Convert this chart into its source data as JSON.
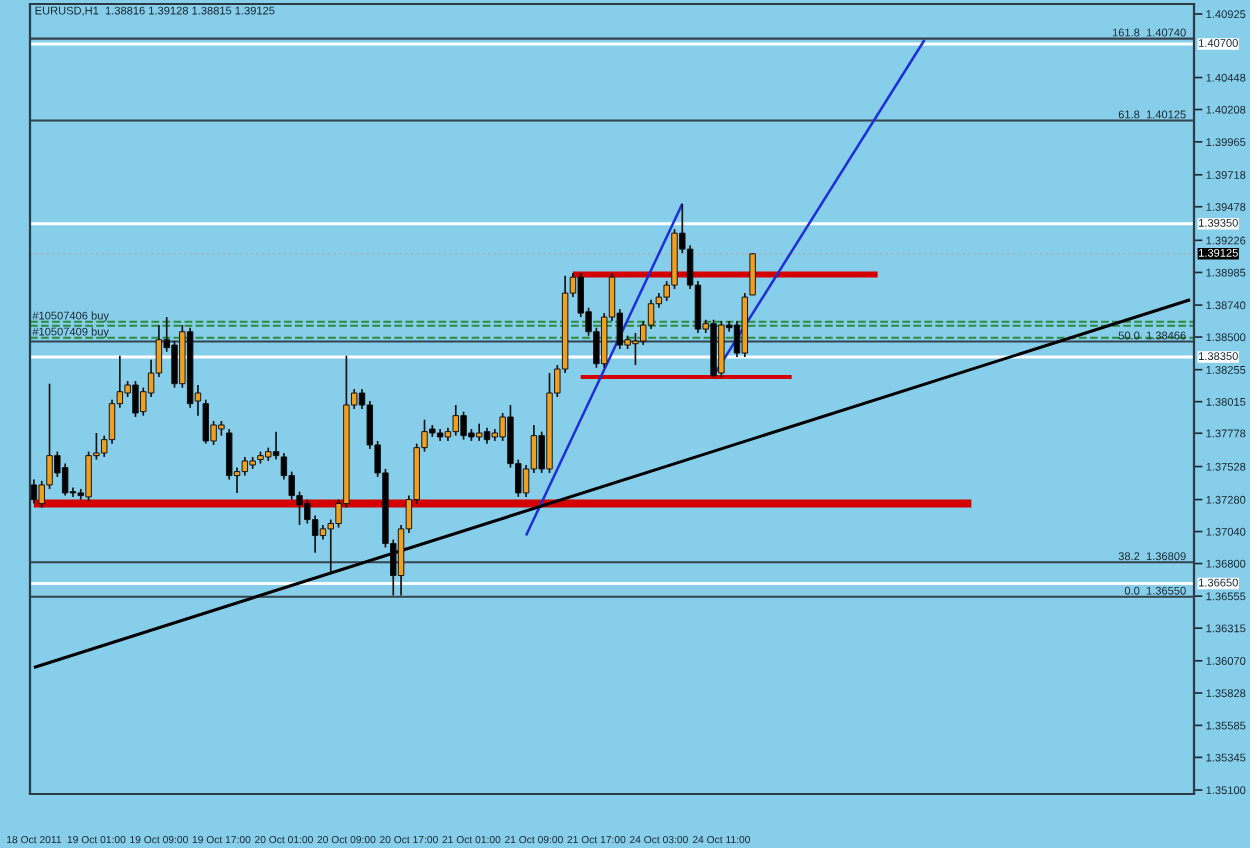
{
  "chart_data": {
    "type": "candlestick",
    "title": "EURUSD,H1  1.38816 1.39128 1.38815 1.39125",
    "categories": [
      "18 Oct 2011",
      null,
      null,
      null,
      null,
      null,
      null,
      null,
      "19 Oct 01:00",
      null,
      null,
      null,
      null,
      null,
      null,
      null,
      "19 Oct 09:00",
      null,
      null,
      null,
      null,
      null,
      null,
      null,
      "19 Oct 17:00",
      null,
      null,
      null,
      null,
      null,
      null,
      null,
      "20 Oct 01:00",
      null,
      null,
      null,
      null,
      null,
      null,
      null,
      "20 Oct 09:00",
      null,
      null,
      null,
      null,
      null,
      null,
      null,
      "20 Oct 17:00",
      null,
      null,
      null,
      null,
      null,
      null,
      null,
      "21 Oct 01:00",
      null,
      null,
      null,
      null,
      null,
      null,
      null,
      "21 Oct 09:00",
      null,
      null,
      null,
      null,
      null,
      null,
      null,
      "21 Oct 17:00",
      null,
      null,
      null,
      null,
      null,
      null,
      null,
      "24 Oct 03:00",
      null,
      null,
      null,
      null,
      null,
      null,
      null,
      "24 Oct 11:00",
      null,
      null,
      null,
      null,
      null,
      null,
      null,
      null,
      null,
      null,
      null,
      null,
      null,
      null,
      null,
      null,
      null,
      null,
      null,
      null,
      null,
      null,
      null,
      null,
      null,
      null,
      null,
      null,
      null,
      null,
      null,
      null,
      null,
      null,
      null,
      null,
      null,
      null,
      null,
      null,
      null,
      null,
      null,
      null,
      null,
      null,
      null,
      null,
      null,
      null,
      null,
      null,
      null,
      null,
      null,
      null,
      null,
      null,
      null,
      null
    ],
    "ohlc": [
      [
        1.3739,
        1.3743,
        1.3725,
        1.3728
      ],
      [
        1.3725,
        1.3742,
        1.3722,
        1.3739
      ],
      [
        1.3739,
        1.3815,
        1.3736,
        1.3761
      ],
      [
        1.3761,
        1.3764,
        1.3745,
        1.3748
      ],
      [
        1.3752,
        1.3755,
        1.3731,
        1.3733
      ],
      [
        1.3734,
        1.3737,
        1.373,
        1.3733
      ],
      [
        1.3733,
        1.3736,
        1.3728,
        1.3731
      ],
      [
        1.373,
        1.3764,
        1.3727,
        1.3761
      ],
      [
        1.3761,
        1.3778,
        1.3758,
        1.3763
      ],
      [
        1.3763,
        1.3776,
        1.376,
        1.3773
      ],
      [
        1.3773,
        1.3803,
        1.377,
        1.38
      ],
      [
        1.38,
        1.3836,
        1.3797,
        1.3809
      ],
      [
        1.3808,
        1.3817,
        1.3805,
        1.3814
      ],
      [
        1.3814,
        1.3817,
        1.379,
        1.3793
      ],
      [
        1.3794,
        1.3812,
        1.3791,
        1.3809
      ],
      [
        1.3808,
        1.3833,
        1.3805,
        1.3823
      ],
      [
        1.3823,
        1.3859,
        1.382,
        1.3848
      ],
      [
        1.3848,
        1.3865,
        1.3839,
        1.3842
      ],
      [
        1.3844,
        1.3847,
        1.3812,
        1.3815
      ],
      [
        1.3815,
        1.3859,
        1.3812,
        1.3854
      ],
      [
        1.3854,
        1.3857,
        1.3797,
        1.38
      ],
      [
        1.3802,
        1.3814,
        1.3791,
        1.3808
      ],
      [
        1.38,
        1.3803,
        1.377,
        1.3772
      ],
      [
        1.3772,
        1.3787,
        1.3769,
        1.3784
      ],
      [
        1.3781,
        1.3787,
        1.3776,
        1.3784
      ],
      [
        1.3778,
        1.3781,
        1.3743,
        1.3746
      ],
      [
        1.3746,
        1.3752,
        1.3733,
        1.3749
      ],
      [
        1.3749,
        1.376,
        1.3746,
        1.3757
      ],
      [
        1.3754,
        1.376,
        1.3751,
        1.3757
      ],
      [
        1.3758,
        1.3764,
        1.3755,
        1.3761
      ],
      [
        1.376,
        1.3767,
        1.3757,
        1.3764
      ],
      [
        1.3764,
        1.3779,
        1.3758,
        1.3761
      ],
      [
        1.376,
        1.3763,
        1.3743,
        1.3746
      ],
      [
        1.3746,
        1.3749,
        1.3728,
        1.3731
      ],
      [
        1.3731,
        1.3734,
        1.3709,
        1.3724
      ],
      [
        1.3725,
        1.3728,
        1.371,
        1.3713
      ],
      [
        1.3713,
        1.3716,
        1.3688,
        1.3701
      ],
      [
        1.3701,
        1.3709,
        1.3698,
        1.3706
      ],
      [
        1.3706,
        1.3713,
        1.3673,
        1.371
      ],
      [
        1.371,
        1.3728,
        1.3707,
        1.3725
      ],
      [
        1.3725,
        1.3836,
        1.3722,
        1.3799
      ],
      [
        1.3799,
        1.3811,
        1.3796,
        1.3808
      ],
      [
        1.3808,
        1.3811,
        1.3796,
        1.3799
      ],
      [
        1.3799,
        1.3802,
        1.3766,
        1.3769
      ],
      [
        1.3769,
        1.3772,
        1.3745,
        1.3748
      ],
      [
        1.3748,
        1.3751,
        1.3692,
        1.3695
      ],
      [
        1.3695,
        1.3698,
        1.3656,
        1.3671
      ],
      [
        1.3671,
        1.3709,
        1.3656,
        1.3706
      ],
      [
        1.3706,
        1.3731,
        1.3703,
        1.3728
      ],
      [
        1.3728,
        1.377,
        1.3725,
        1.3767
      ],
      [
        1.3767,
        1.3788,
        1.3764,
        1.3779
      ],
      [
        1.3781,
        1.3784,
        1.3775,
        1.3778
      ],
      [
        1.3778,
        1.3781,
        1.3772,
        1.3775
      ],
      [
        1.3775,
        1.3782,
        1.3772,
        1.3779
      ],
      [
        1.3779,
        1.3799,
        1.3776,
        1.3791
      ],
      [
        1.3791,
        1.3794,
        1.3773,
        1.3776
      ],
      [
        1.3778,
        1.3781,
        1.3772,
        1.3775
      ],
      [
        1.3775,
        1.3785,
        1.3772,
        1.3778
      ],
      [
        1.3779,
        1.3782,
        1.377,
        1.3773
      ],
      [
        1.3775,
        1.3781,
        1.3772,
        1.3778
      ],
      [
        1.3775,
        1.3793,
        1.3772,
        1.379
      ],
      [
        1.379,
        1.3799,
        1.3752,
        1.3755
      ],
      [
        1.3755,
        1.3758,
        1.373,
        1.3733
      ],
      [
        1.3733,
        1.3754,
        1.373,
        1.3751
      ],
      [
        1.3751,
        1.3784,
        1.3748,
        1.3776
      ],
      [
        1.3776,
        1.3779,
        1.3748,
        1.3751
      ],
      [
        1.3751,
        1.3823,
        1.3748,
        1.3808
      ],
      [
        1.3808,
        1.3829,
        1.3805,
        1.3826
      ],
      [
        1.3826,
        1.3896,
        1.3823,
        1.3883
      ],
      [
        1.3883,
        1.3898,
        1.388,
        1.3895
      ],
      [
        1.3895,
        1.3898,
        1.3865,
        1.3868
      ],
      [
        1.3869,
        1.3872,
        1.3851,
        1.3854
      ],
      [
        1.3854,
        1.3857,
        1.3827,
        1.383
      ],
      [
        1.383,
        1.3868,
        1.3827,
        1.3865
      ],
      [
        1.3865,
        1.3898,
        1.3862,
        1.3895
      ],
      [
        1.3868,
        1.3871,
        1.3841,
        1.3844
      ],
      [
        1.3844,
        1.3851,
        1.3841,
        1.3848
      ],
      [
        1.3845,
        1.3853,
        1.3829,
        1.3847
      ],
      [
        1.3847,
        1.3862,
        1.3844,
        1.3859
      ],
      [
        1.3859,
        1.3878,
        1.3856,
        1.3875
      ],
      [
        1.3875,
        1.3883,
        1.3872,
        1.388
      ],
      [
        1.388,
        1.3892,
        1.3877,
        1.3889
      ],
      [
        1.3889,
        1.3931,
        1.3886,
        1.3928
      ],
      [
        1.3928,
        1.395,
        1.3913,
        1.3916
      ],
      [
        1.3916,
        1.3919,
        1.3886,
        1.3889
      ],
      [
        1.3889,
        1.3892,
        1.3853,
        1.3856
      ],
      [
        1.3856,
        1.3863,
        1.3853,
        1.386
      ],
      [
        1.386,
        1.3863,
        1.382,
        1.3821
      ],
      [
        1.3823,
        1.3862,
        1.382,
        1.3859
      ],
      [
        1.3859,
        1.3862,
        1.3854,
        1.3857
      ],
      [
        1.3859,
        1.3862,
        1.3835,
        1.3838
      ],
      [
        1.3838,
        1.3883,
        1.3835,
        1.388
      ],
      [
        1.38816,
        1.39128,
        1.38815,
        1.39125
      ],
      null,
      null,
      null,
      null,
      null,
      null,
      null,
      null,
      null,
      null,
      null,
      null,
      null,
      null,
      null,
      null,
      null,
      null,
      null,
      null,
      null,
      null,
      null,
      null,
      null,
      null,
      null,
      null,
      null,
      null,
      null,
      null,
      null,
      null,
      null,
      null,
      null,
      null,
      null,
      null,
      null,
      null,
      null,
      null,
      null,
      null,
      null,
      null,
      null,
      null,
      null,
      null,
      null,
      null,
      null,
      null
    ],
    "colors": [
      "#000000",
      "#f0a020",
      "#f0a020",
      "#000000",
      "#000000",
      "#000000",
      "#000000",
      "#f0a020",
      "#f0a020",
      "#f0a020",
      "#f0a020",
      "#f0a020",
      "#f0a020",
      "#000000",
      "#f0a020",
      "#f0a020",
      "#f0a020",
      "#000000",
      "#000000",
      "#f0a020",
      "#000000",
      "#f0a020",
      "#000000",
      "#f0a020",
      "#f0a020",
      "#000000",
      "#f0a020",
      "#f0a020",
      "#f0a020",
      "#f0a020",
      "#f0a020",
      "#000000",
      "#000000",
      "#000000",
      "#000000",
      "#000000",
      "#000000",
      "#f0a020",
      "#f0a020",
      "#f0a020",
      "#f0a020",
      "#f0a020",
      "#000000",
      "#000000",
      "#000000",
      "#000000",
      "#000000",
      "#f0a020",
      "#f0a020",
      "#f0a020",
      "#f0a020",
      "#000000",
      "#000000",
      "#f0a020",
      "#f0a020",
      "#000000",
      "#000000",
      "#f0a020",
      "#000000",
      "#f0a020",
      "#f0a020",
      "#000000",
      "#000000",
      "#f0a020",
      "#f0a020",
      "#000000",
      "#f0a020",
      "#f0a020",
      "#f0a020",
      "#f0a020",
      "#000000",
      "#000000",
      "#000000",
      "#f0a020",
      "#f0a020",
      "#000000",
      "#f0a020",
      "#f0a020",
      "#f0a020",
      "#f0a020",
      "#f0a020",
      "#f0a020",
      "#f0a020",
      "#000000",
      "#000000",
      "#000000",
      "#f0a020",
      "#000000",
      "#f0a020",
      "#000000",
      "#000000",
      "#f0a020",
      "#f0a020",
      null,
      null,
      null,
      null,
      null,
      null,
      null,
      null,
      null,
      null,
      null,
      null,
      null,
      null,
      null,
      null,
      null,
      null,
      null,
      null,
      null,
      null,
      null,
      null,
      null,
      null,
      null,
      null,
      null,
      null,
      null,
      null,
      null,
      null,
      null,
      null,
      null,
      null,
      null,
      null,
      null,
      null,
      null,
      null,
      null,
      null,
      null,
      null,
      null,
      null,
      null,
      null,
      null,
      null,
      null,
      null
    ],
    "series": [
      {
        "type": "line",
        "color": "#d40000",
        "values": [
          1.3725,
          null,
          null,
          null,
          null,
          null,
          null,
          null,
          null,
          null,
          null,
          null,
          null,
          null,
          null,
          null,
          null,
          null,
          null,
          null,
          null,
          null,
          null,
          null,
          null,
          null,
          null,
          null,
          null,
          null,
          null,
          null,
          null,
          null,
          null,
          null,
          null,
          null,
          null,
          null,
          null,
          null,
          null,
          null,
          null,
          null,
          null,
          null,
          null,
          null,
          null,
          null,
          null,
          null,
          null,
          null,
          null,
          null,
          null,
          null,
          null,
          null,
          null,
          null,
          null,
          null,
          null,
          null,
          null,
          null,
          null,
          null,
          null,
          null,
          null,
          null,
          null,
          null,
          null,
          null,
          null,
          null,
          null,
          null,
          null,
          null,
          null,
          null,
          null,
          null,
          null,
          null,
          null,
          null,
          null,
          null,
          null,
          null,
          null,
          null,
          null,
          null,
          null,
          null,
          null,
          null,
          null,
          null,
          null,
          null,
          null,
          null,
          null,
          null,
          null,
          null,
          null,
          null,
          null,
          null,
          1.3725,
          null,
          null,
          null,
          null,
          null,
          null,
          null,
          null,
          null,
          null,
          null,
          null,
          null,
          null,
          null,
          null,
          null,
          null,
          null,
          null,
          null,
          null,
          null,
          null,
          null,
          null,
          null,
          null
        ]
      },
      {
        "type": "line",
        "color": "#d40000",
        "values": [
          null,
          null,
          null,
          null,
          null,
          null,
          null,
          null,
          null,
          null,
          null,
          null,
          null,
          null,
          null,
          null,
          null,
          null,
          null,
          null,
          null,
          null,
          null,
          null,
          null,
          null,
          null,
          null,
          null,
          null,
          null,
          null,
          null,
          null,
          null,
          null,
          null,
          null,
          null,
          null,
          null,
          null,
          null,
          null,
          null,
          null,
          null,
          null,
          null,
          null,
          null,
          null,
          null,
          null,
          null,
          null,
          null,
          null,
          null,
          null,
          null,
          null,
          null,
          null,
          null,
          null,
          null,
          null,
          null,
          1.3897,
          null,
          null,
          null,
          null,
          null,
          null,
          null,
          null,
          null,
          null,
          null,
          null,
          null,
          null,
          null,
          null,
          null,
          null,
          null,
          null,
          null,
          null,
          null,
          null,
          null,
          null,
          null,
          null,
          null,
          null,
          null,
          null,
          null,
          null,
          null,
          null,
          null,
          null,
          1.3897,
          null,
          null,
          null,
          null,
          null,
          null,
          null,
          null,
          null,
          null,
          null,
          null,
          null,
          null,
          null,
          null,
          null,
          null,
          null,
          null,
          null,
          null,
          null,
          null,
          null,
          null,
          null,
          null,
          null,
          null,
          null,
          null,
          null,
          null,
          null,
          null,
          null,
          null,
          null,
          null
        ]
      },
      {
        "type": "line",
        "color": "#d40000",
        "values": [
          null,
          null,
          null,
          null,
          null,
          null,
          null,
          null,
          null,
          null,
          null,
          null,
          null,
          null,
          null,
          null,
          null,
          null,
          null,
          null,
          null,
          null,
          null,
          null,
          null,
          null,
          null,
          null,
          null,
          null,
          null,
          null,
          null,
          null,
          null,
          null,
          null,
          null,
          null,
          null,
          null,
          null,
          null,
          null,
          null,
          null,
          null,
          null,
          null,
          null,
          null,
          null,
          null,
          null,
          null,
          null,
          null,
          null,
          null,
          null,
          null,
          null,
          null,
          null,
          null,
          null,
          null,
          null,
          null,
          null,
          1.382,
          null,
          null,
          null,
          null,
          null,
          null,
          null,
          null,
          null,
          null,
          null,
          null,
          null,
          null,
          null,
          null,
          null,
          null,
          null,
          null,
          null,
          null,
          null,
          null,
          null,
          null,
          1.382,
          null,
          null,
          null,
          null,
          null,
          null,
          null,
          null,
          null,
          null,
          null,
          null,
          null,
          null,
          null,
          null,
          null,
          null,
          null,
          null,
          null,
          null,
          null,
          null,
          null,
          null,
          null,
          null,
          null,
          null,
          null,
          null,
          null,
          null,
          null,
          null,
          null,
          null,
          null,
          null,
          null,
          null,
          null,
          null,
          null,
          null,
          null,
          null,
          null,
          null,
          null
        ]
      },
      {
        "type": "line",
        "color": "#1f2fd8",
        "values": [
          null,
          null,
          null,
          null,
          null,
          null,
          null,
          null,
          null,
          null,
          null,
          null,
          null,
          null,
          null,
          null,
          null,
          null,
          null,
          null,
          null,
          null,
          null,
          null,
          null,
          null,
          null,
          null,
          null,
          null,
          null,
          null,
          null,
          null,
          null,
          null,
          null,
          null,
          null,
          null,
          null,
          null,
          null,
          null,
          null,
          null,
          null,
          null,
          null,
          null,
          null,
          null,
          null,
          null,
          null,
          null,
          null,
          null,
          null,
          null,
          null,
          null,
          null,
          1.3701,
          null,
          null,
          null,
          null,
          null,
          null,
          null,
          null,
          null,
          null,
          null,
          null,
          null,
          null,
          null,
          null,
          null,
          null,
          null,
          1.395,
          null,
          null,
          null,
          null,
          null,
          null,
          null,
          null,
          null,
          null,
          null,
          null,
          null,
          null,
          null,
          null,
          null,
          null,
          null,
          null,
          null,
          null,
          null,
          null,
          null,
          null,
          null,
          null,
          null,
          null,
          null,
          null,
          null,
          null,
          null,
          null,
          null,
          null,
          null,
          null,
          null,
          null,
          null,
          null,
          null,
          null,
          null,
          null,
          null,
          null,
          null,
          null,
          null,
          null,
          null,
          null,
          null,
          null,
          null,
          null,
          null,
          null,
          null,
          null,
          null
        ]
      },
      {
        "type": "line",
        "color": "#1f2fd8",
        "values": [
          null,
          null,
          null,
          null,
          null,
          null,
          null,
          null,
          null,
          null,
          null,
          null,
          null,
          null,
          null,
          null,
          null,
          null,
          null,
          null,
          null,
          null,
          null,
          null,
          null,
          null,
          null,
          null,
          null,
          null,
          null,
          null,
          null,
          null,
          null,
          null,
          null,
          null,
          null,
          null,
          null,
          null,
          null,
          null,
          null,
          null,
          null,
          null,
          null,
          null,
          null,
          null,
          null,
          null,
          null,
          null,
          null,
          null,
          null,
          null,
          null,
          null,
          null,
          null,
          null,
          null,
          null,
          null,
          null,
          null,
          null,
          null,
          null,
          null,
          null,
          null,
          null,
          null,
          null,
          null,
          null,
          null,
          null,
          null,
          null,
          null,
          null,
          1.3821,
          null,
          null,
          null,
          null,
          null,
          null,
          null,
          null,
          null,
          null,
          null,
          null,
          null,
          null,
          null,
          null,
          null,
          null,
          null,
          null,
          null,
          null,
          null,
          null,
          null,
          null,
          1.4073,
          null,
          null,
          null,
          null,
          null,
          null,
          null,
          null,
          null,
          null,
          null,
          null,
          null,
          null,
          null,
          null,
          null,
          null,
          null,
          null,
          null,
          null,
          null,
          null,
          null,
          null,
          null,
          null,
          null,
          null,
          null,
          null,
          null,
          null
        ]
      },
      {
        "type": "line",
        "color": "#000000",
        "values": [
          1.3602,
          null,
          null,
          null,
          null,
          null,
          null,
          null,
          null,
          null,
          null,
          null,
          null,
          null,
          null,
          null,
          null,
          null,
          null,
          null,
          null,
          null,
          null,
          null,
          null,
          null,
          null,
          null,
          null,
          null,
          null,
          null,
          null,
          null,
          null,
          null,
          null,
          null,
          null,
          null,
          null,
          null,
          null,
          null,
          null,
          null,
          null,
          null,
          null,
          null,
          null,
          null,
          null,
          null,
          null,
          null,
          null,
          null,
          null,
          null,
          null,
          null,
          null,
          null,
          null,
          null,
          null,
          null,
          null,
          null,
          null,
          null,
          null,
          null,
          null,
          null,
          null,
          null,
          null,
          null,
          null,
          null,
          null,
          null,
          null,
          null,
          null,
          null,
          null,
          null,
          null,
          null,
          null,
          null,
          null,
          null,
          null,
          null,
          null,
          null,
          null,
          null,
          null,
          null,
          null,
          null,
          null,
          null,
          null,
          null,
          null,
          null,
          null,
          null,
          null,
          null,
          null,
          null,
          null,
          null,
          null,
          null,
          null,
          null,
          null,
          null,
          null,
          null,
          null,
          null,
          null,
          null,
          null,
          null,
          null,
          null,
          null,
          null,
          null,
          null,
          null,
          null,
          null,
          null,
          null,
          null,
          null,
          null,
          1.3878
        ]
      }
    ],
    "ref_lines": [
      {
        "axis": "y",
        "value": 1.4074,
        "label": "161.8  1.40740",
        "color": "#34434d"
      },
      {
        "axis": "y",
        "value": 1.407,
        "label": "1.40700",
        "color": "#ffffff"
      },
      {
        "axis": "y",
        "value": 1.40125,
        "label": "61.8  1.40125",
        "color": "#34434d"
      },
      {
        "axis": "y",
        "value": 1.3935,
        "label": "1.39350",
        "color": "#ffffff"
      },
      {
        "axis": "y",
        "value": 1.39125,
        "label": "1.39125",
        "color": "#a8b4bc",
        "line_style": "dotted"
      },
      {
        "axis": "y",
        "value": 1.38615,
        "label": "#10507406 buy",
        "color": "#2e8b3e",
        "line_style": "dashed"
      },
      {
        "axis": "y",
        "value": 1.38585,
        "color": "#2e8b3e",
        "line_style": "dashed"
      },
      {
        "axis": "y",
        "value": 1.38495,
        "label": "#10507409 buy",
        "color": "#2e8b3e",
        "line_style": "dashed"
      },
      {
        "axis": "y",
        "value": 1.38466,
        "label": "50.0  1.38466",
        "color": "#34434d"
      },
      {
        "axis": "y",
        "value": 1.3835,
        "label": "1.38350",
        "color": "#ffffff"
      },
      {
        "axis": "y",
        "value": 1.36809,
        "label": "38.2  1.36809",
        "color": "#34434d"
      },
      {
        "axis": "y",
        "value": 1.3665,
        "label": "1.36650",
        "color": "#ffffff"
      },
      {
        "axis": "y",
        "value": 1.3655,
        "label": "0.0  1.36550",
        "color": "#34434d"
      }
    ],
    "ylim": [
      1.3507,
      1.41
    ],
    "yticks": [
      1.40925,
      1.40448,
      1.40208,
      1.39965,
      1.39718,
      1.39478,
      1.39226,
      1.38985,
      {
        "value": 1.3874,
        "label": "1.38740"
      },
      {
        "value": 1.385,
        "label": "1.38500"
      },
      1.38255,
      1.38015,
      1.37778,
      1.37528,
      {
        "value": 1.3728,
        "label": "1.37280"
      },
      {
        "value": 1.3704,
        "label": "1.37040"
      },
      {
        "value": 1.368,
        "label": "1.36800"
      },
      1.36555,
      1.36315,
      {
        "value": 1.3607,
        "label": "1.36070"
      },
      1.35828,
      1.35585,
      1.35345,
      {
        "value": 1.351,
        "label": "1.35100"
      }
    ]
  }
}
